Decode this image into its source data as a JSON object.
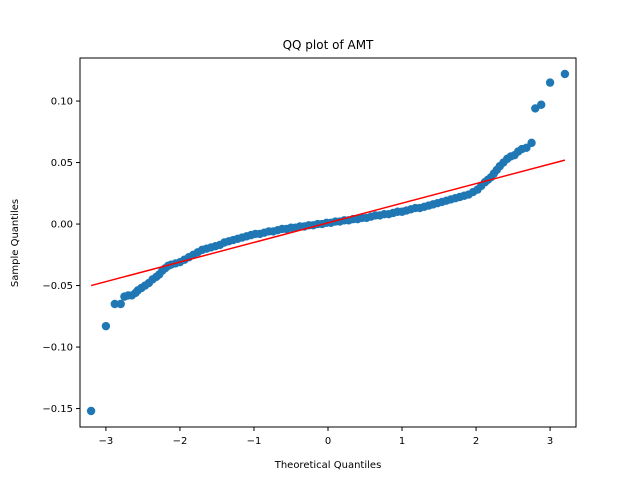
{
  "chart_data": {
    "type": "scatter",
    "title": "QQ plot of AMT",
    "xlabel": "Theoretical Quantiles",
    "ylabel": "Sample Quantiles",
    "xlim": [
      -3.35,
      3.35
    ],
    "ylim": [
      -0.165,
      0.135
    ],
    "xticks": [
      -3,
      -2,
      -1,
      0,
      1,
      2,
      3
    ],
    "xtick_labels": [
      "−3",
      "−2",
      "−1",
      "0",
      "1",
      "2",
      "3"
    ],
    "yticks": [
      -0.15,
      -0.1,
      -0.05,
      0.0,
      0.05,
      0.1
    ],
    "ytick_labels": [
      "−0.15",
      "−0.10",
      "−0.05",
      "0.00",
      "0.05",
      "0.10"
    ],
    "grid": false,
    "marker_color": "#1f77b4",
    "line_color": "#ff0000",
    "reference_line": {
      "x": [
        -3.2,
        3.2
      ],
      "y": [
        -0.05,
        0.052
      ]
    },
    "points": [
      [
        -3.2,
        -0.152
      ],
      [
        -3.0,
        -0.083
      ],
      [
        -2.88,
        -0.065
      ],
      [
        -2.8,
        -0.065
      ],
      [
        -2.75,
        -0.059
      ],
      [
        -2.7,
        -0.058
      ],
      [
        -2.65,
        -0.058
      ],
      [
        -2.6,
        -0.056
      ],
      [
        -2.57,
        -0.054
      ],
      [
        -2.52,
        -0.052
      ],
      [
        -2.47,
        -0.05
      ],
      [
        -2.42,
        -0.048
      ],
      [
        -2.37,
        -0.045
      ],
      [
        -2.32,
        -0.043
      ],
      [
        -2.28,
        -0.041
      ],
      [
        -2.24,
        -0.038
      ],
      [
        -2.2,
        -0.036
      ],
      [
        -2.16,
        -0.034
      ],
      [
        -2.12,
        -0.033
      ],
      [
        -2.06,
        -0.032
      ],
      [
        -2.0,
        -0.031
      ],
      [
        -1.94,
        -0.029
      ],
      [
        -1.88,
        -0.027
      ],
      [
        -1.82,
        -0.025
      ],
      [
        -1.76,
        -0.023
      ],
      [
        -1.7,
        -0.021
      ],
      [
        -1.64,
        -0.02
      ],
      [
        -1.58,
        -0.019
      ],
      [
        -1.52,
        -0.018
      ],
      [
        -1.46,
        -0.017
      ],
      [
        -1.4,
        -0.015
      ],
      [
        -1.34,
        -0.014
      ],
      [
        -1.28,
        -0.013
      ],
      [
        -1.22,
        -0.012
      ],
      [
        -1.16,
        -0.011
      ],
      [
        -1.1,
        -0.01
      ],
      [
        -1.04,
        -0.009
      ],
      [
        -0.98,
        -0.008
      ],
      [
        -0.92,
        -0.008
      ],
      [
        -0.86,
        -0.007
      ],
      [
        -0.8,
        -0.006
      ],
      [
        -0.74,
        -0.006
      ],
      [
        -0.68,
        -0.005
      ],
      [
        -0.62,
        -0.004
      ],
      [
        -0.56,
        -0.004
      ],
      [
        -0.5,
        -0.003
      ],
      [
        -0.44,
        -0.003
      ],
      [
        -0.38,
        -0.002
      ],
      [
        -0.32,
        -0.002
      ],
      [
        -0.26,
        -0.001
      ],
      [
        -0.2,
        -0.001
      ],
      [
        -0.14,
        0.0
      ],
      [
        -0.08,
        0.0
      ],
      [
        -0.02,
        0.001
      ],
      [
        0.04,
        0.001
      ],
      [
        0.1,
        0.002
      ],
      [
        0.16,
        0.002
      ],
      [
        0.22,
        0.003
      ],
      [
        0.28,
        0.003
      ],
      [
        0.34,
        0.004
      ],
      [
        0.4,
        0.004
      ],
      [
        0.46,
        0.005
      ],
      [
        0.52,
        0.005
      ],
      [
        0.58,
        0.006
      ],
      [
        0.64,
        0.007
      ],
      [
        0.7,
        0.007
      ],
      [
        0.76,
        0.008
      ],
      [
        0.82,
        0.008
      ],
      [
        0.88,
        0.009
      ],
      [
        0.94,
        0.01
      ],
      [
        1.0,
        0.01
      ],
      [
        1.06,
        0.011
      ],
      [
        1.12,
        0.012
      ],
      [
        1.18,
        0.013
      ],
      [
        1.24,
        0.013
      ],
      [
        1.3,
        0.014
      ],
      [
        1.36,
        0.015
      ],
      [
        1.42,
        0.016
      ],
      [
        1.48,
        0.017
      ],
      [
        1.54,
        0.018
      ],
      [
        1.6,
        0.019
      ],
      [
        1.66,
        0.02
      ],
      [
        1.72,
        0.021
      ],
      [
        1.78,
        0.022
      ],
      [
        1.84,
        0.023
      ],
      [
        1.9,
        0.024
      ],
      [
        1.96,
        0.026
      ],
      [
        2.02,
        0.028
      ],
      [
        2.07,
        0.031
      ],
      [
        2.12,
        0.034
      ],
      [
        2.16,
        0.036
      ],
      [
        2.2,
        0.038
      ],
      [
        2.24,
        0.041
      ],
      [
        2.28,
        0.044
      ],
      [
        2.32,
        0.047
      ],
      [
        2.37,
        0.05
      ],
      [
        2.42,
        0.053
      ],
      [
        2.47,
        0.055
      ],
      [
        2.52,
        0.056
      ],
      [
        2.57,
        0.059
      ],
      [
        2.62,
        0.061
      ],
      [
        2.68,
        0.062
      ],
      [
        2.75,
        0.066
      ],
      [
        2.8,
        0.094
      ],
      [
        2.88,
        0.097
      ],
      [
        3.0,
        0.115
      ],
      [
        3.2,
        0.122
      ]
    ]
  }
}
